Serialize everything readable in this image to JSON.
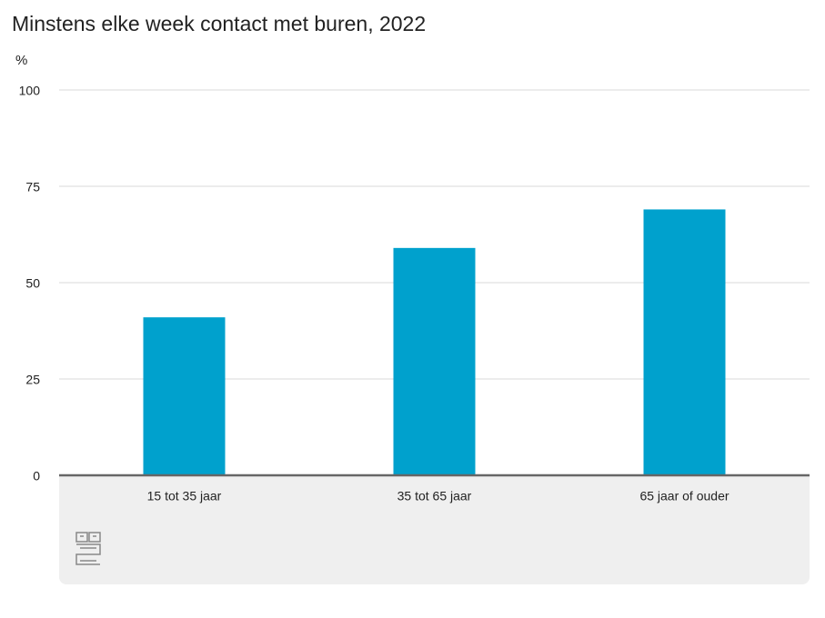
{
  "chart_data": {
    "type": "bar",
    "title": "Minstens elke week contact met buren, 2022",
    "y_label": "%",
    "categories": [
      "15 tot 35 jaar",
      "35 tot 65 jaar",
      "65 jaar of ouder"
    ],
    "values": [
      41,
      59,
      69
    ],
    "color": "#00a1cd",
    "ylim": [
      0,
      100
    ],
    "yticks": [
      0,
      25,
      50,
      75,
      100
    ],
    "grid": true
  }
}
